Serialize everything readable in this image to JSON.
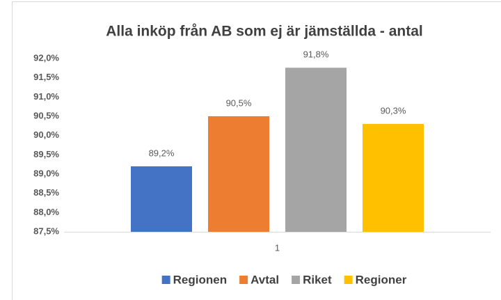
{
  "chart_data": {
    "type": "bar",
    "title": "Alla inköp från AB som ej är jämställda - antal",
    "categories": [
      "1"
    ],
    "series": [
      {
        "name": "Regionen",
        "color": "#4472c4",
        "values": [
          89.2
        ],
        "value_labels": [
          "89,2%"
        ]
      },
      {
        "name": "Avtal",
        "color": "#ed7d31",
        "values": [
          90.5
        ],
        "value_labels": [
          "90,5%"
        ]
      },
      {
        "name": "Riket",
        "color": "#a5a5a5",
        "values": [
          91.76
        ],
        "value_labels": [
          "91,8%"
        ]
      },
      {
        "name": "Regioner",
        "color": "#ffc000",
        "values": [
          90.3
        ],
        "value_labels": [
          "90,3%"
        ]
      }
    ],
    "ylim": [
      87.5,
      92.0
    ],
    "yticks": [
      {
        "value": 87.5,
        "label": "87,5%"
      },
      {
        "value": 88.0,
        "label": "88,0%"
      },
      {
        "value": 88.5,
        "label": "88,5%"
      },
      {
        "value": 89.0,
        "label": "89,0%"
      },
      {
        "value": 89.5,
        "label": "89,5%"
      },
      {
        "value": 90.0,
        "label": "90,0%"
      },
      {
        "value": 90.5,
        "label": "90,5%"
      },
      {
        "value": 91.0,
        "label": "91,0%"
      },
      {
        "value": 91.5,
        "label": "91,5%"
      },
      {
        "value": 92.0,
        "label": "92,0%"
      }
    ],
    "grid": false,
    "legend": "bottom"
  }
}
